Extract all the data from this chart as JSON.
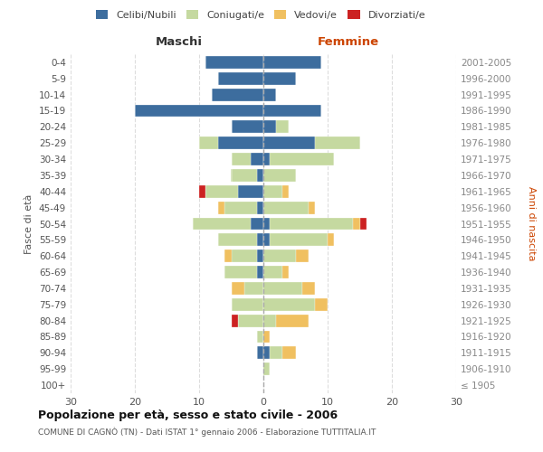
{
  "age_groups": [
    "0-4",
    "5-9",
    "10-14",
    "15-19",
    "20-24",
    "25-29",
    "30-34",
    "35-39",
    "40-44",
    "45-49",
    "50-54",
    "55-59",
    "60-64",
    "65-69",
    "70-74",
    "75-79",
    "80-84",
    "85-89",
    "90-94",
    "95-99",
    "100+"
  ],
  "birth_years": [
    "2001-2005",
    "1996-2000",
    "1991-1995",
    "1986-1990",
    "1981-1985",
    "1976-1980",
    "1971-1975",
    "1966-1970",
    "1961-1965",
    "1956-1960",
    "1951-1955",
    "1946-1950",
    "1941-1945",
    "1936-1940",
    "1931-1935",
    "1926-1930",
    "1921-1925",
    "1916-1920",
    "1911-1915",
    "1906-1910",
    "≤ 1905"
  ],
  "male": {
    "celibi": [
      9,
      7,
      8,
      20,
      5,
      7,
      2,
      1,
      4,
      1,
      2,
      1,
      1,
      1,
      0,
      0,
      0,
      0,
      1,
      0,
      0
    ],
    "coniugati": [
      0,
      0,
      0,
      0,
      0,
      3,
      3,
      4,
      5,
      5,
      9,
      6,
      4,
      5,
      3,
      5,
      4,
      1,
      0,
      0,
      0
    ],
    "vedovi": [
      0,
      0,
      0,
      0,
      0,
      0,
      0,
      0,
      0,
      1,
      0,
      0,
      1,
      0,
      2,
      0,
      0,
      0,
      0,
      0,
      0
    ],
    "divorziati": [
      0,
      0,
      0,
      0,
      0,
      0,
      0,
      0,
      1,
      0,
      0,
      0,
      0,
      0,
      0,
      0,
      1,
      0,
      0,
      0,
      0
    ]
  },
  "female": {
    "nubili": [
      9,
      5,
      2,
      9,
      2,
      8,
      1,
      0,
      0,
      0,
      1,
      1,
      0,
      0,
      0,
      0,
      0,
      0,
      1,
      0,
      0
    ],
    "coniugate": [
      0,
      0,
      0,
      0,
      2,
      7,
      10,
      5,
      3,
      7,
      13,
      9,
      5,
      3,
      6,
      8,
      2,
      0,
      2,
      1,
      0
    ],
    "vedove": [
      0,
      0,
      0,
      0,
      0,
      0,
      0,
      0,
      1,
      1,
      1,
      1,
      2,
      1,
      2,
      2,
      5,
      1,
      2,
      0,
      0
    ],
    "divorziate": [
      0,
      0,
      0,
      0,
      0,
      0,
      0,
      0,
      0,
      0,
      1,
      0,
      0,
      0,
      0,
      0,
      0,
      0,
      0,
      0,
      0
    ]
  },
  "color_celibi": "#3d6d9e",
  "color_coniugati": "#c5d9a0",
  "color_vedovi": "#f0c060",
  "color_divorziati": "#cc2222",
  "title1": "Popolazione per età, sesso e stato civile - 2006",
  "title2": "COMUNE DI CAGNÒ (TN) - Dati ISTAT 1° gennaio 2006 - Elaborazione TUTTITALIA.IT",
  "xlabel_left": "Maschi",
  "xlabel_right": "Femmine",
  "ylabel_left": "Fasce di età",
  "ylabel_right": "Anni di nascita",
  "xlim": 30,
  "background_color": "#ffffff",
  "grid_color": "#dddddd"
}
